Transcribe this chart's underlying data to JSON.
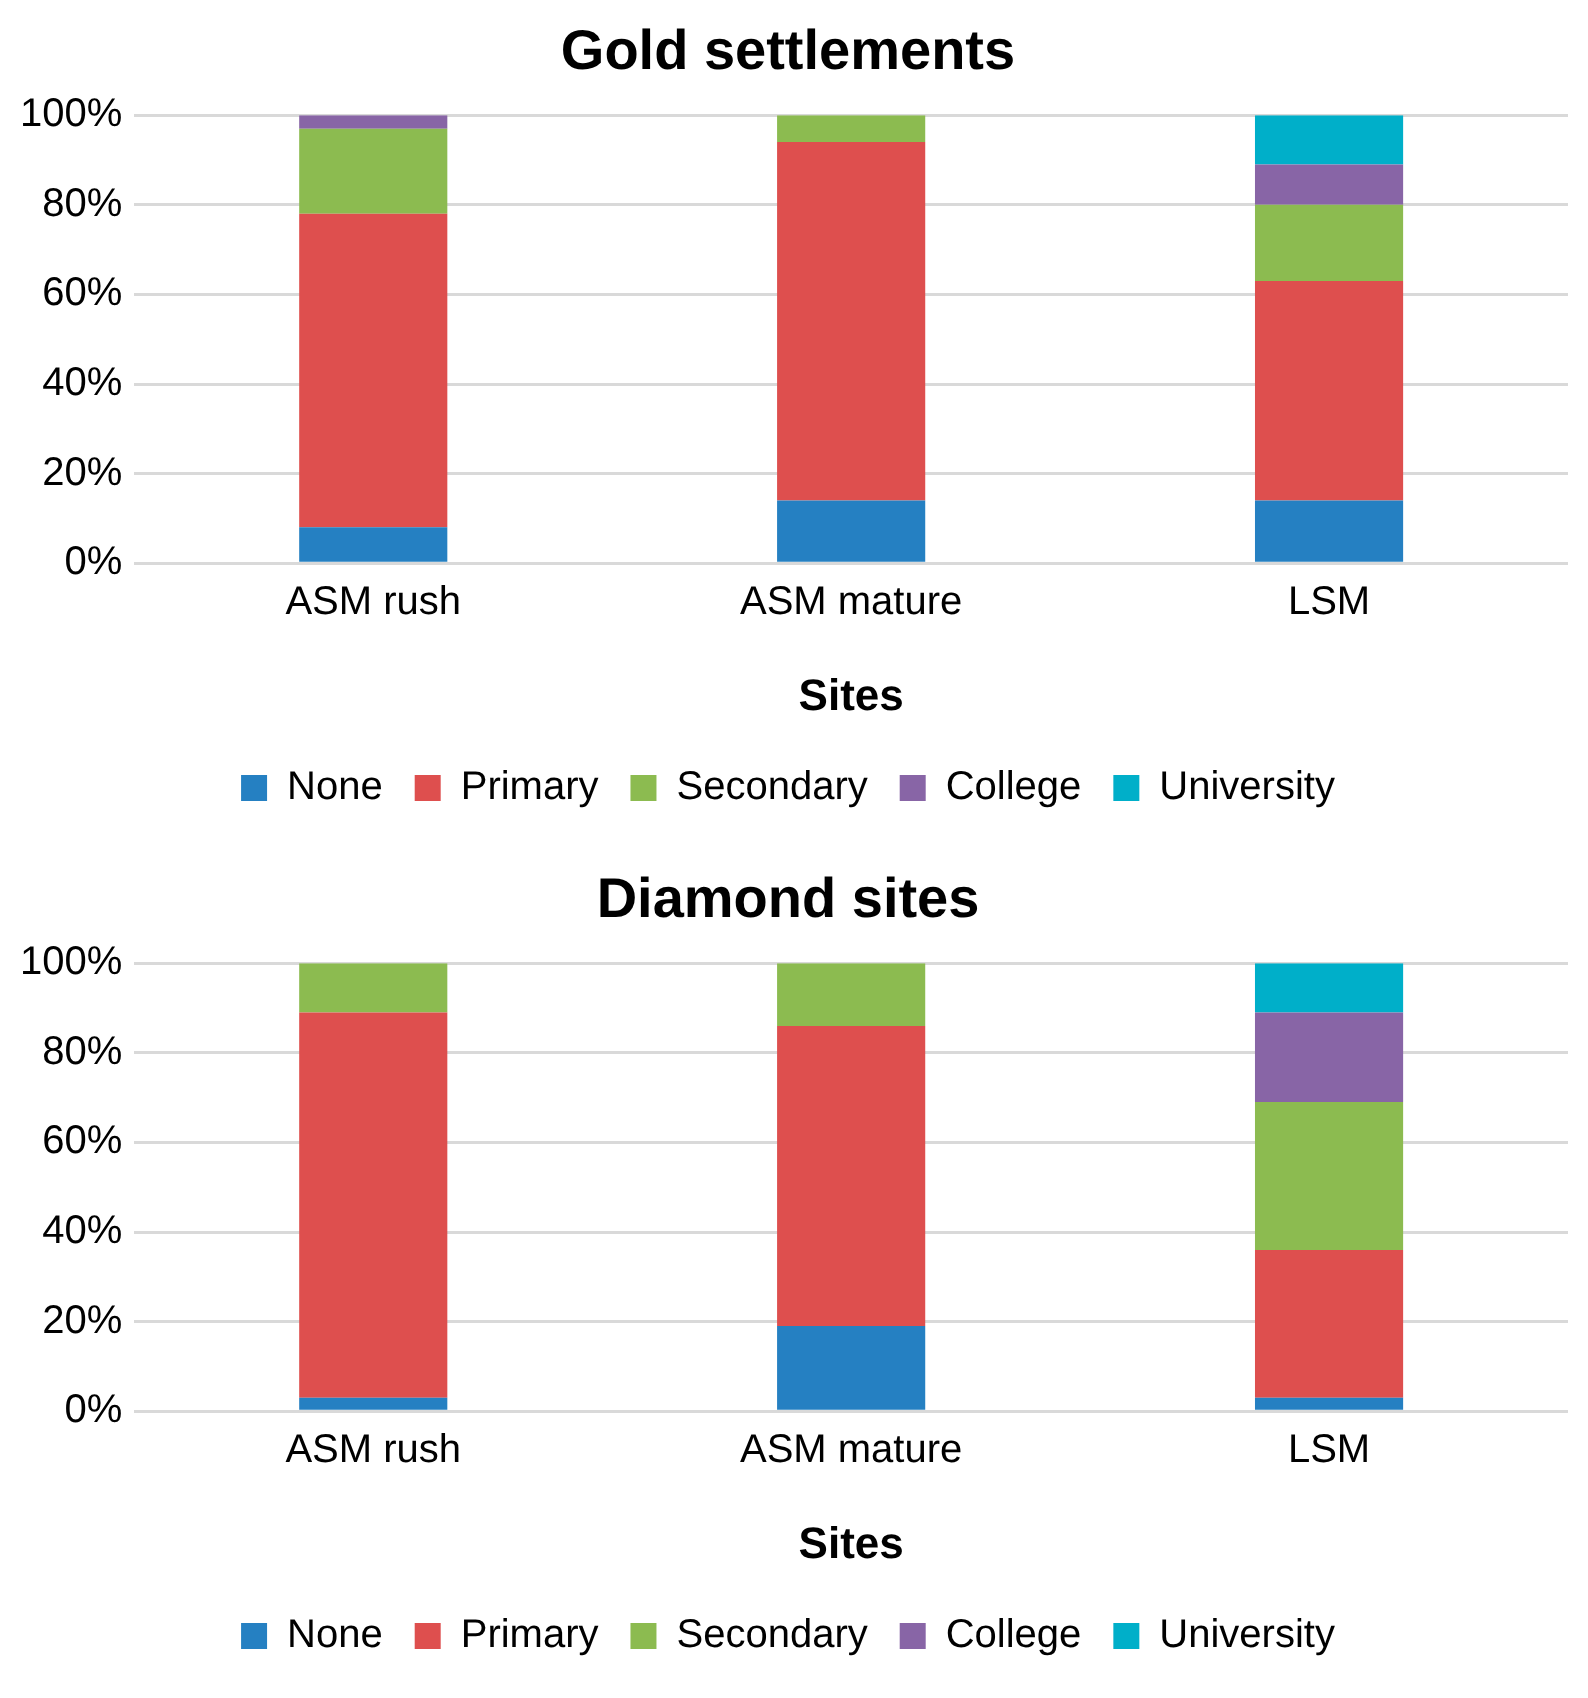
{
  "chart_data": [
    {
      "type": "bar",
      "title": "Gold settlements",
      "xlabel": "Sites",
      "categories": [
        "ASM rush",
        "ASM mature",
        "LSM"
      ],
      "stacked": true,
      "ylim": [
        0,
        100
      ],
      "yticks": [
        {
          "value": 0,
          "label": "0%"
        },
        {
          "value": 20,
          "label": "20%"
        },
        {
          "value": 40,
          "label": "40%"
        },
        {
          "value": 60,
          "label": "60%"
        },
        {
          "value": 80,
          "label": "80%"
        },
        {
          "value": 100,
          "label": "100%"
        }
      ],
      "grid": "y",
      "legend": "bottom",
      "series": [
        {
          "name": "None",
          "color": "#2580c2",
          "values": [
            8,
            14,
            14
          ]
        },
        {
          "name": "Primary",
          "color": "#de4f4e",
          "values": [
            70,
            80,
            49
          ]
        },
        {
          "name": "Secondary",
          "color": "#8cbb50",
          "values": [
            19,
            6,
            17
          ]
        },
        {
          "name": "College",
          "color": "#8865a6",
          "values": [
            3,
            0,
            9
          ]
        },
        {
          "name": "University",
          "color": "#00afc9",
          "values": [
            0,
            0,
            11
          ]
        }
      ]
    },
    {
      "type": "bar",
      "title": "Diamond sites",
      "xlabel": "Sites",
      "categories": [
        "ASM rush",
        "ASM mature",
        "LSM"
      ],
      "stacked": true,
      "ylim": [
        0,
        100
      ],
      "yticks": [
        {
          "value": 0,
          "label": "0%"
        },
        {
          "value": 20,
          "label": "20%"
        },
        {
          "value": 40,
          "label": "40%"
        },
        {
          "value": 60,
          "label": "60%"
        },
        {
          "value": 80,
          "label": "80%"
        },
        {
          "value": 100,
          "label": "100%"
        }
      ],
      "grid": "y",
      "legend": "bottom",
      "series": [
        {
          "name": "None",
          "color": "#2580c2",
          "values": [
            3,
            19,
            3
          ]
        },
        {
          "name": "Primary",
          "color": "#de4f4e",
          "values": [
            86,
            67,
            33
          ]
        },
        {
          "name": "Secondary",
          "color": "#8cbb50",
          "values": [
            11,
            14,
            33
          ]
        },
        {
          "name": "College",
          "color": "#8865a6",
          "values": [
            0,
            0,
            20
          ]
        },
        {
          "name": "University",
          "color": "#00afc9",
          "values": [
            0,
            0,
            11
          ]
        }
      ]
    }
  ]
}
